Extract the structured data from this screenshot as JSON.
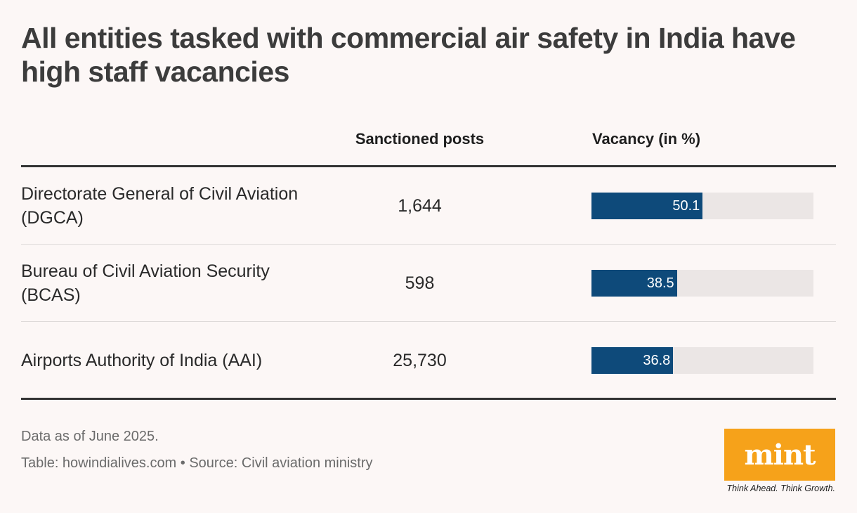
{
  "title": "All entities tasked with commercial air safety in India have high staff vacancies",
  "chart_data": {
    "type": "table",
    "columns": [
      "",
      "Sanctioned posts",
      "Vacancy (in %)"
    ],
    "rows": [
      {
        "entity": "Directorate General of Civil Aviation (DGCA)",
        "sanctioned_posts": "1,644",
        "vacancy": 50.1,
        "vacancy_label": "50.1"
      },
      {
        "entity": "Bureau of Civil Aviation Security (BCAS)",
        "sanctioned_posts": "598",
        "vacancy": 38.5,
        "vacancy_label": "38.5"
      },
      {
        "entity": "Airports Authority of India (AAI)",
        "sanctioned_posts": "25,730",
        "vacancy": 36.8,
        "vacancy_label": "36.8"
      }
    ],
    "vacancy_max": 100,
    "bar_color": "#0e4a7a",
    "track_color": "#ebe6e5"
  },
  "footer": {
    "note": "Data as of June 2025.",
    "source": "Table: howindialives.com • Source: Civil aviation ministry"
  },
  "brand": {
    "logo_text": "mint",
    "tagline": "Think Ahead. Think Growth.",
    "logo_color": "#f6a21a"
  }
}
